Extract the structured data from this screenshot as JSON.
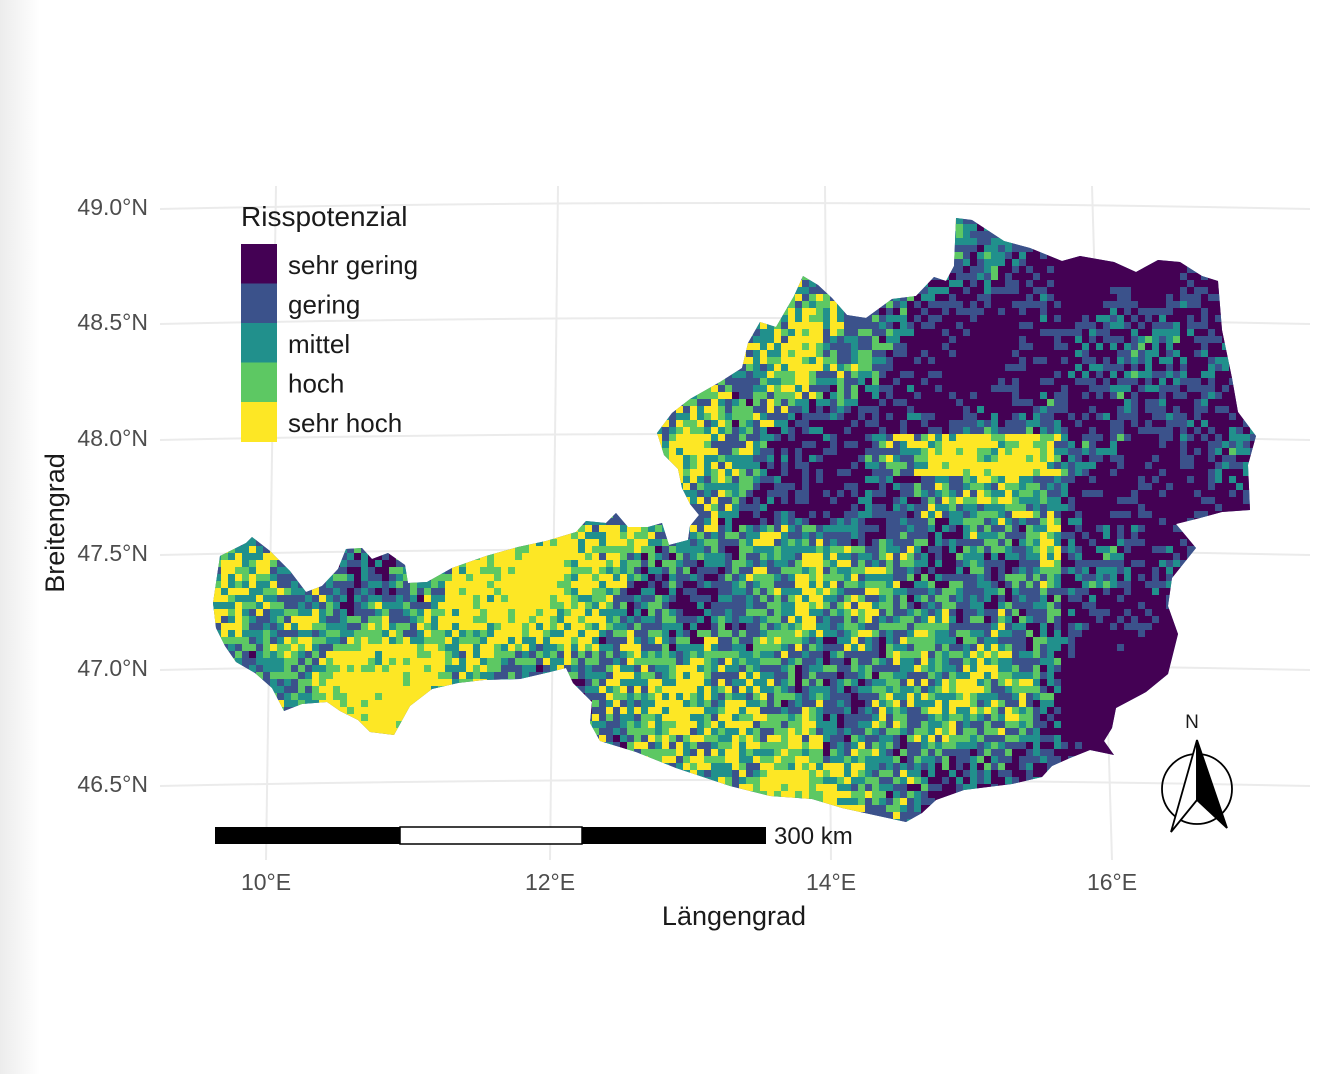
{
  "map": {
    "x_axis_title": "Längengrad",
    "y_axis_title": "Breitengrad",
    "lat_ticks": [
      {
        "value": 49.0,
        "label": "49.0°N"
      },
      {
        "value": 48.5,
        "label": "48.5°N"
      },
      {
        "value": 48.0,
        "label": "48.0°N"
      },
      {
        "value": 47.5,
        "label": "47.5°N"
      },
      {
        "value": 47.0,
        "label": "47.0°N"
      },
      {
        "value": 46.5,
        "label": "46.5°N"
      }
    ],
    "lon_ticks": [
      {
        "value": 10,
        "label": "10°E"
      },
      {
        "value": 12,
        "label": "12°E"
      },
      {
        "value": 14,
        "label": "14°E"
      },
      {
        "value": 16,
        "label": "16°E"
      }
    ],
    "legend": {
      "title": "Risspotenzial",
      "items": [
        {
          "label": "sehr gering",
          "color": "#440154"
        },
        {
          "label": "gering",
          "color": "#3b528b"
        },
        {
          "label": "mittel",
          "color": "#21908c"
        },
        {
          "label": "hoch",
          "color": "#5dc863"
        },
        {
          "label": "sehr hoch",
          "color": "#fde725"
        }
      ]
    },
    "scale_bar": {
      "label": "300 km"
    },
    "north_arrow": {
      "label": "N"
    },
    "raster_palette": [
      "#440154",
      "#3b528b",
      "#21908c",
      "#5dc863",
      "#fde725"
    ]
  }
}
